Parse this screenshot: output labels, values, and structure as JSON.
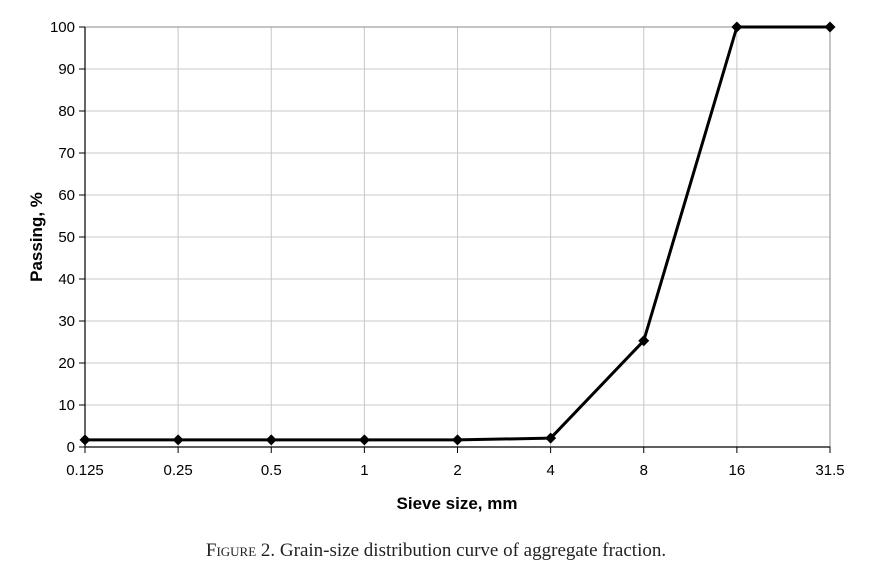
{
  "chart_data": {
    "type": "line",
    "categories": [
      "0.125",
      "0.25",
      "0.5",
      "1",
      "2",
      "4",
      "8",
      "16",
      "31.5"
    ],
    "series": [
      {
        "values": [
          1.7,
          1.7,
          1.7,
          1.7,
          1.7,
          2.1,
          25.3,
          100,
          100
        ]
      }
    ],
    "xlabel": "Sieve size, mm",
    "ylabel": "Passing, %",
    "ylim": [
      0,
      100
    ],
    "yticks": [
      0,
      10,
      20,
      30,
      40,
      50,
      60,
      70,
      80,
      90,
      100
    ],
    "grid": true,
    "legend": "none",
    "line_color": "#000000",
    "marker": "diamond"
  },
  "caption": {
    "label": "Figure",
    "number": " 2.",
    "text": " Grain-size distribution curve of aggregate fraction."
  }
}
